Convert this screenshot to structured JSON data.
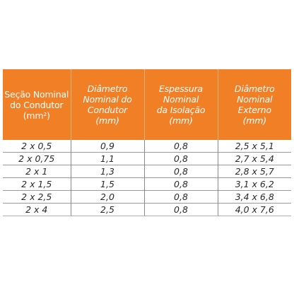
{
  "headers": [
    {
      "lines": [
        "Seção Nominal",
        "do Condutor",
        "(mm²)"
      ]
    },
    {
      "lines": [
        "Diâmetro",
        "Nominal do",
        "Condutor",
        "(mm)"
      ]
    },
    {
      "lines": [
        "Espessura",
        "Nominal",
        "da Isolação",
        "(mm)"
      ]
    },
    {
      "lines": [
        "Diâmetro",
        "Nominal",
        "Externo",
        "(mm)"
      ]
    }
  ],
  "rows": [
    [
      "2 x 0,5",
      "0,9",
      "0,8",
      "2,5 x 5,1"
    ],
    [
      "2 x 0,75",
      "1,1",
      "0,8",
      "2,7 x 5,4"
    ],
    [
      "2 x 1",
      "1,3",
      "0,8",
      "2,8 x 5,7"
    ],
    [
      "2 x 1,5",
      "1,5",
      "0,8",
      "3,1 x 6,2"
    ],
    [
      "2 x 2,5",
      "2,0",
      "0,8",
      "3,4 x 6,8"
    ],
    [
      "2 x 4",
      "2,5",
      "0,8",
      "4,0 x 7,6"
    ]
  ],
  "colors": {
    "header_bg": "#f07f26",
    "header_text": "#ffffff",
    "body_text": "#2a2a2a"
  }
}
